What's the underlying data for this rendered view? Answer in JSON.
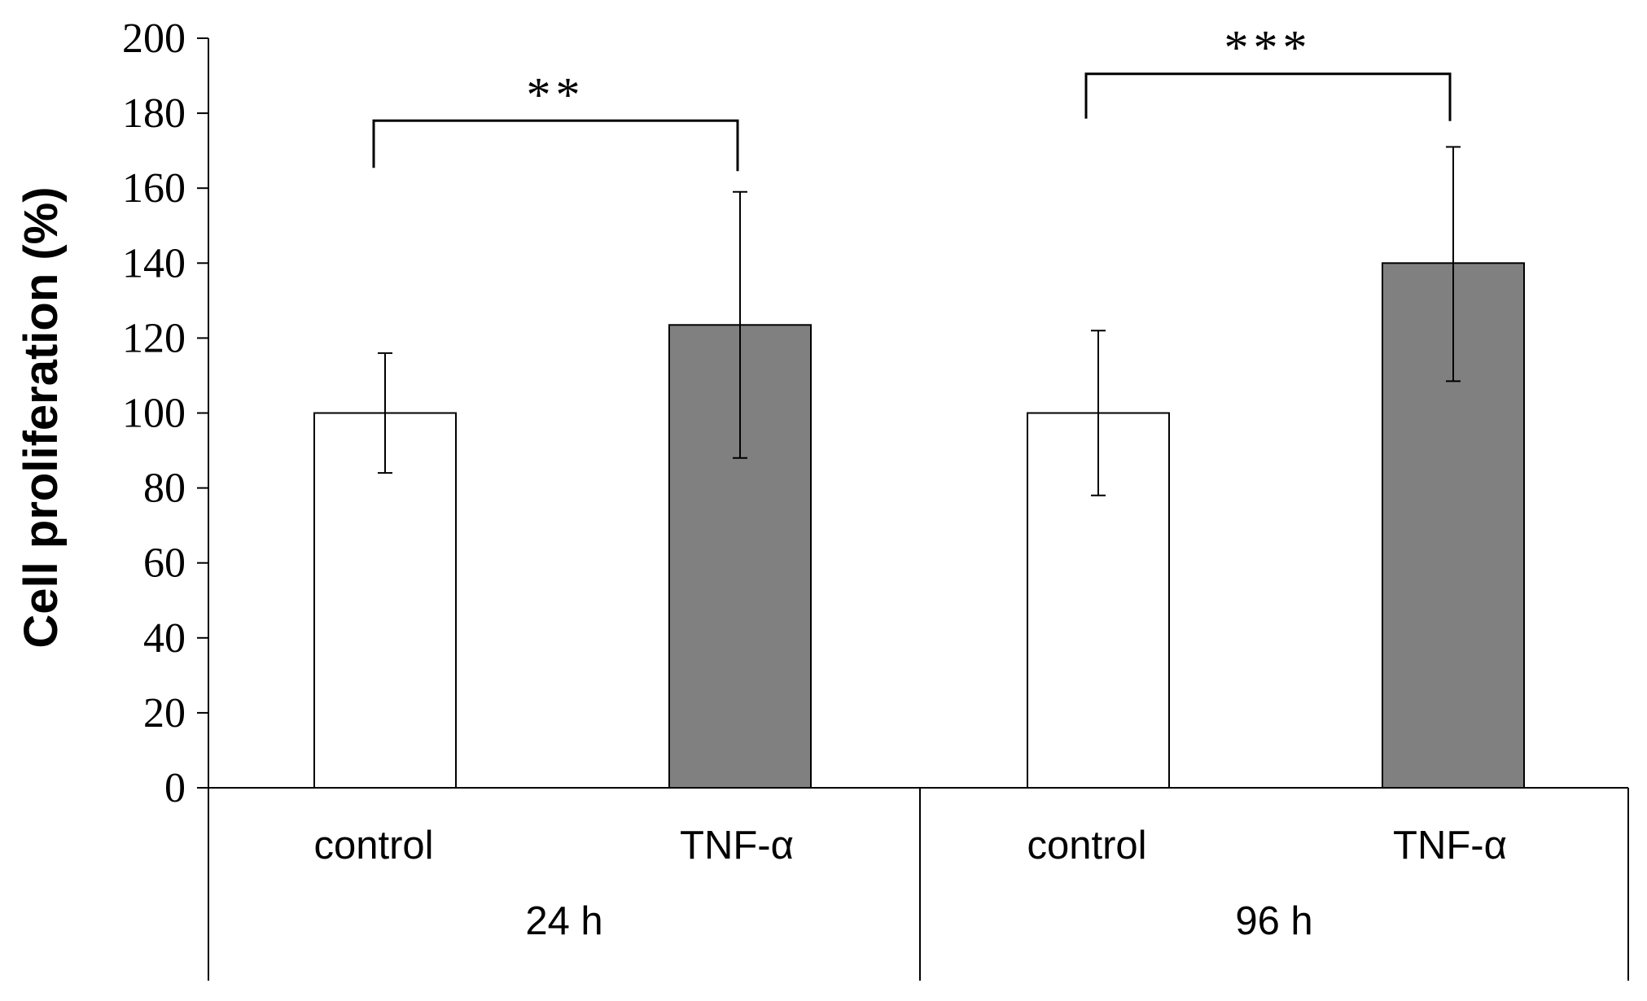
{
  "chart_data": {
    "type": "bar",
    "title": "",
    "xlabel": "",
    "ylabel": "Cell proliferation (%)",
    "ylim": [
      0,
      200
    ],
    "yticks": [
      0,
      20,
      40,
      60,
      80,
      100,
      120,
      140,
      160,
      180,
      200
    ],
    "grid": false,
    "legend": "none",
    "groups": [
      {
        "label": "24 h",
        "bars": [
          {
            "category": "control",
            "value": 100,
            "error_low": 84,
            "error_high": 116,
            "color": "#ffffff"
          },
          {
            "category": "TNF-α",
            "value": 123.5,
            "error_low": 88,
            "error_high": 159,
            "color": "#808080"
          }
        ],
        "significance": "**",
        "bracket_level": 178
      },
      {
        "label": "96 h",
        "bars": [
          {
            "category": "control",
            "value": 100,
            "error_low": 78,
            "error_high": 122,
            "color": "#ffffff"
          },
          {
            "category": "TNF-α",
            "value": 140,
            "error_low": 108.5,
            "error_high": 171,
            "color": "#808080"
          }
        ],
        "significance": "***",
        "bracket_level": 190.5
      }
    ]
  }
}
